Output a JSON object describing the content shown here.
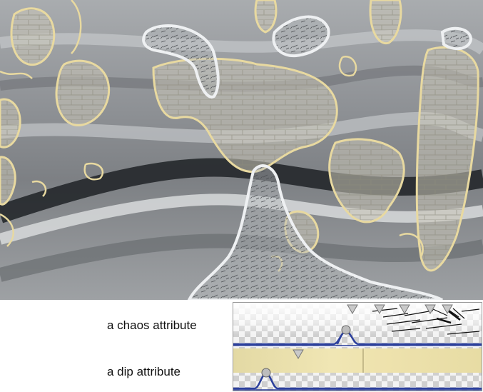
{
  "attributes": {
    "chaos": {
      "label": "a chaos attribute"
    },
    "dip": {
      "label": "a dip attribute"
    }
  },
  "colors": {
    "seismic_gray": "#8e9194",
    "dip_highlight": "#e8d9a0",
    "chaos_highlight": "#eef0f2",
    "opacity_curve": "#2b3f9c"
  }
}
